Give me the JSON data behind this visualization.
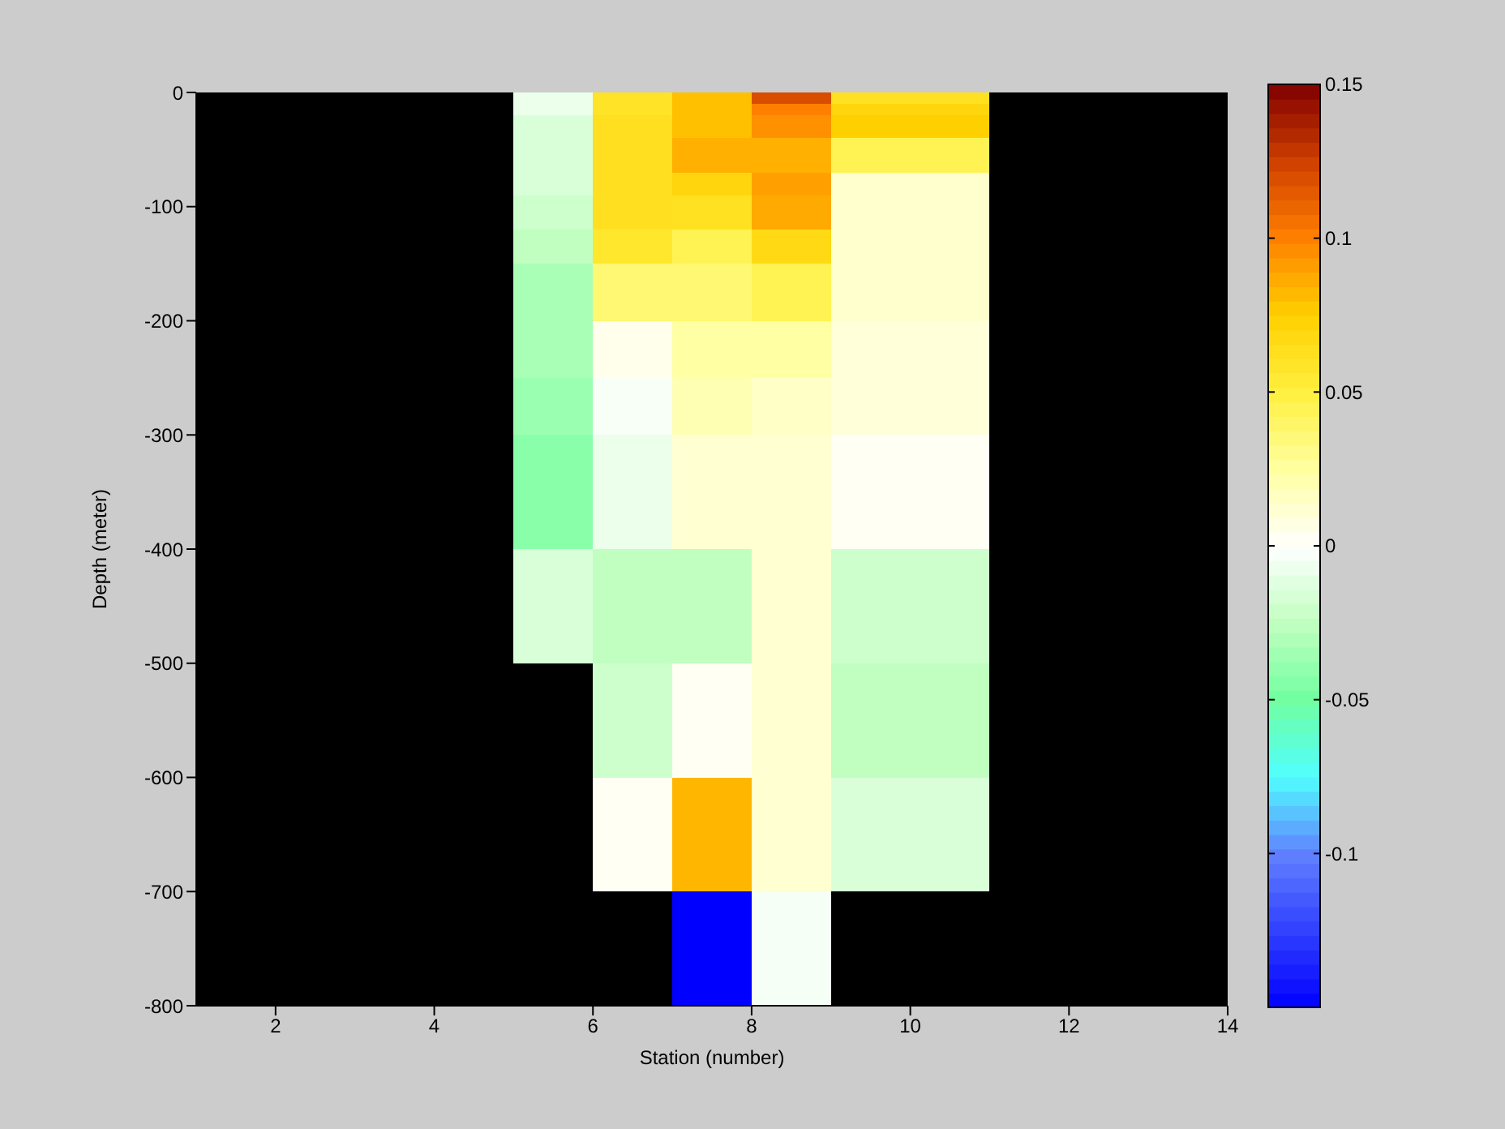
{
  "chart_data": {
    "type": "heatmap",
    "xlabel": "Station (number)",
    "ylabel": "Depth (meter)",
    "cells": [
      [
        null,
        null,
        null,
        null,
        -0.008,
        0.06,
        0.08,
        0.12,
        0.062,
        0.062,
        null,
        null,
        null
      ],
      [
        null,
        null,
        null,
        null,
        -0.008,
        0.06,
        0.08,
        0.1,
        0.07,
        0.07,
        null,
        null,
        null
      ],
      [
        null,
        null,
        null,
        null,
        -0.015,
        0.063,
        0.08,
        0.095,
        0.075,
        0.075,
        null,
        null,
        null
      ],
      [
        null,
        null,
        null,
        null,
        -0.015,
        0.063,
        0.08,
        0.095,
        0.075,
        0.075,
        null,
        null,
        null
      ],
      [
        null,
        null,
        null,
        null,
        -0.015,
        0.063,
        0.085,
        0.085,
        0.045,
        0.045,
        null,
        null,
        null
      ],
      [
        null,
        null,
        null,
        null,
        -0.015,
        0.063,
        0.085,
        0.085,
        0.045,
        0.045,
        null,
        null,
        null
      ],
      [
        null,
        null,
        null,
        null,
        -0.015,
        0.063,
        0.085,
        0.085,
        0.045,
        0.045,
        null,
        null,
        null
      ],
      [
        null,
        null,
        null,
        null,
        -0.015,
        0.063,
        0.07,
        0.09,
        0.013,
        0.013,
        null,
        null,
        null
      ],
      [
        null,
        null,
        null,
        null,
        -0.015,
        0.063,
        0.07,
        0.09,
        0.013,
        0.013,
        null,
        null,
        null
      ],
      [
        null,
        null,
        null,
        null,
        -0.02,
        0.063,
        0.062,
        0.087,
        0.013,
        0.013,
        null,
        null,
        null
      ],
      [
        null,
        null,
        null,
        null,
        -0.02,
        0.063,
        0.062,
        0.087,
        0.013,
        0.013,
        null,
        null,
        null
      ],
      [
        null,
        null,
        null,
        null,
        -0.02,
        0.063,
        0.062,
        0.087,
        0.013,
        0.013,
        null,
        null,
        null
      ],
      [
        null,
        null,
        null,
        null,
        -0.025,
        0.057,
        0.045,
        0.067,
        0.013,
        0.013,
        null,
        null,
        null
      ],
      [
        null,
        null,
        null,
        null,
        -0.025,
        0.057,
        0.045,
        0.067,
        0.013,
        0.013,
        null,
        null,
        null
      ],
      [
        null,
        null,
        null,
        null,
        -0.025,
        0.057,
        0.045,
        0.067,
        0.013,
        0.013,
        null,
        null,
        null
      ],
      [
        null,
        null,
        null,
        null,
        -0.032,
        0.037,
        0.037,
        0.045,
        0.013,
        0.013,
        null,
        null,
        null
      ],
      [
        null,
        null,
        null,
        null,
        -0.032,
        0.037,
        0.037,
        0.045,
        0.013,
        0.013,
        null,
        null,
        null
      ],
      [
        null,
        null,
        null,
        null,
        -0.032,
        0.037,
        0.037,
        0.045,
        0.013,
        0.013,
        null,
        null,
        null
      ],
      [
        null,
        null,
        null,
        null,
        -0.032,
        0.037,
        0.037,
        0.045,
        0.013,
        0.013,
        null,
        null,
        null
      ],
      [
        null,
        null,
        null,
        null,
        -0.032,
        0.037,
        0.037,
        0.045,
        0.013,
        0.013,
        null,
        null,
        null
      ],
      [
        null,
        null,
        null,
        null,
        -0.032,
        0.005,
        0.024,
        0.024,
        0.01,
        0.01,
        null,
        null,
        null
      ],
      [
        null,
        null,
        null,
        null,
        -0.032,
        0.005,
        0.024,
        0.024,
        0.01,
        0.01,
        null,
        null,
        null
      ],
      [
        null,
        null,
        null,
        null,
        -0.032,
        0.005,
        0.024,
        0.024,
        0.01,
        0.01,
        null,
        null,
        null
      ],
      [
        null,
        null,
        null,
        null,
        -0.032,
        0.005,
        0.024,
        0.024,
        0.01,
        0.01,
        null,
        null,
        null
      ],
      [
        null,
        null,
        null,
        null,
        -0.032,
        0.005,
        0.024,
        0.024,
        0.01,
        0.01,
        null,
        null,
        null
      ],
      [
        null,
        null,
        null,
        null,
        -0.037,
        -0.003,
        0.02,
        0.015,
        0.01,
        0.01,
        null,
        null,
        null
      ],
      [
        null,
        null,
        null,
        null,
        -0.037,
        -0.003,
        0.02,
        0.015,
        0.01,
        0.01,
        null,
        null,
        null
      ],
      [
        null,
        null,
        null,
        null,
        -0.037,
        -0.003,
        0.02,
        0.015,
        0.01,
        0.01,
        null,
        null,
        null
      ],
      [
        null,
        null,
        null,
        null,
        -0.037,
        -0.003,
        0.02,
        0.015,
        0.01,
        0.01,
        null,
        null,
        null
      ],
      [
        null,
        null,
        null,
        null,
        -0.037,
        -0.003,
        0.02,
        0.015,
        0.01,
        0.01,
        null,
        null,
        null
      ],
      [
        null,
        null,
        null,
        null,
        -0.042,
        -0.008,
        0.012,
        0.012,
        0.003,
        0.003,
        null,
        null,
        null
      ],
      [
        null,
        null,
        null,
        null,
        -0.042,
        -0.008,
        0.012,
        0.012,
        0.003,
        0.003,
        null,
        null,
        null
      ],
      [
        null,
        null,
        null,
        null,
        -0.042,
        -0.008,
        0.012,
        0.012,
        0.003,
        0.003,
        null,
        null,
        null
      ],
      [
        null,
        null,
        null,
        null,
        -0.042,
        -0.008,
        0.012,
        0.012,
        0.003,
        0.003,
        null,
        null,
        null
      ],
      [
        null,
        null,
        null,
        null,
        -0.042,
        -0.008,
        0.012,
        0.012,
        0.003,
        0.003,
        null,
        null,
        null
      ],
      [
        null,
        null,
        null,
        null,
        -0.042,
        -0.008,
        0.012,
        0.012,
        0.003,
        0.003,
        null,
        null,
        null
      ],
      [
        null,
        null,
        null,
        null,
        -0.042,
        -0.008,
        0.012,
        0.012,
        0.003,
        0.003,
        null,
        null,
        null
      ],
      [
        null,
        null,
        null,
        null,
        -0.042,
        -0.008,
        0.012,
        0.012,
        0.003,
        0.003,
        null,
        null,
        null
      ],
      [
        null,
        null,
        null,
        null,
        -0.042,
        -0.008,
        0.012,
        0.012,
        0.003,
        0.003,
        null,
        null,
        null
      ],
      [
        null,
        null,
        null,
        null,
        -0.042,
        -0.008,
        0.012,
        0.012,
        0.003,
        0.003,
        null,
        null,
        null
      ],
      [
        null,
        null,
        null,
        null,
        -0.015,
        -0.025,
        -0.025,
        0.012,
        -0.02,
        -0.02,
        null,
        null,
        null
      ],
      [
        null,
        null,
        null,
        null,
        -0.015,
        -0.025,
        -0.025,
        0.012,
        -0.02,
        -0.02,
        null,
        null,
        null
      ],
      [
        null,
        null,
        null,
        null,
        -0.015,
        -0.025,
        -0.025,
        0.012,
        -0.02,
        -0.02,
        null,
        null,
        null
      ],
      [
        null,
        null,
        null,
        null,
        -0.015,
        -0.025,
        -0.025,
        0.012,
        -0.02,
        -0.02,
        null,
        null,
        null
      ],
      [
        null,
        null,
        null,
        null,
        -0.015,
        -0.025,
        -0.025,
        0.012,
        -0.02,
        -0.02,
        null,
        null,
        null
      ],
      [
        null,
        null,
        null,
        null,
        -0.015,
        -0.025,
        -0.025,
        0.012,
        -0.02,
        -0.02,
        null,
        null,
        null
      ],
      [
        null,
        null,
        null,
        null,
        -0.015,
        -0.025,
        -0.025,
        0.012,
        -0.02,
        -0.02,
        null,
        null,
        null
      ],
      [
        null,
        null,
        null,
        null,
        -0.015,
        -0.025,
        -0.025,
        0.012,
        -0.02,
        -0.02,
        null,
        null,
        null
      ],
      [
        null,
        null,
        null,
        null,
        -0.015,
        -0.025,
        -0.025,
        0.012,
        -0.02,
        -0.02,
        null,
        null,
        null
      ],
      [
        null,
        null,
        null,
        null,
        -0.015,
        -0.025,
        -0.025,
        0.012,
        -0.02,
        -0.02,
        null,
        null,
        null
      ],
      [
        null,
        null,
        null,
        null,
        null,
        -0.02,
        0.003,
        0.012,
        -0.025,
        -0.025,
        null,
        null,
        null
      ],
      [
        null,
        null,
        null,
        null,
        null,
        -0.02,
        0.003,
        0.012,
        -0.025,
        -0.025,
        null,
        null,
        null
      ],
      [
        null,
        null,
        null,
        null,
        null,
        -0.02,
        0.003,
        0.012,
        -0.025,
        -0.025,
        null,
        null,
        null
      ],
      [
        null,
        null,
        null,
        null,
        null,
        -0.02,
        0.003,
        0.012,
        -0.025,
        -0.025,
        null,
        null,
        null
      ],
      [
        null,
        null,
        null,
        null,
        null,
        -0.02,
        0.003,
        0.012,
        -0.025,
        -0.025,
        null,
        null,
        null
      ],
      [
        null,
        null,
        null,
        null,
        null,
        -0.02,
        0.003,
        0.012,
        -0.025,
        -0.025,
        null,
        null,
        null
      ],
      [
        null,
        null,
        null,
        null,
        null,
        -0.02,
        0.003,
        0.012,
        -0.025,
        -0.025,
        null,
        null,
        null
      ],
      [
        null,
        null,
        null,
        null,
        null,
        -0.02,
        0.003,
        0.012,
        -0.025,
        -0.025,
        null,
        null,
        null
      ],
      [
        null,
        null,
        null,
        null,
        null,
        -0.02,
        0.003,
        0.012,
        -0.025,
        -0.025,
        null,
        null,
        null
      ],
      [
        null,
        null,
        null,
        null,
        null,
        -0.02,
        0.003,
        0.012,
        -0.025,
        -0.025,
        null,
        null,
        null
      ],
      [
        null,
        null,
        null,
        null,
        null,
        0.003,
        0.083,
        0.012,
        -0.015,
        -0.015,
        null,
        null,
        null
      ],
      [
        null,
        null,
        null,
        null,
        null,
        0.003,
        0.083,
        0.012,
        -0.015,
        -0.015,
        null,
        null,
        null
      ],
      [
        null,
        null,
        null,
        null,
        null,
        0.003,
        0.083,
        0.012,
        -0.015,
        -0.015,
        null,
        null,
        null
      ],
      [
        null,
        null,
        null,
        null,
        null,
        0.003,
        0.083,
        0.012,
        -0.015,
        -0.015,
        null,
        null,
        null
      ],
      [
        null,
        null,
        null,
        null,
        null,
        0.003,
        0.083,
        0.012,
        -0.015,
        -0.015,
        null,
        null,
        null
      ],
      [
        null,
        null,
        null,
        null,
        null,
        0.003,
        0.083,
        0.012,
        -0.015,
        -0.015,
        null,
        null,
        null
      ],
      [
        null,
        null,
        null,
        null,
        null,
        0.003,
        0.083,
        0.012,
        -0.015,
        -0.015,
        null,
        null,
        null
      ],
      [
        null,
        null,
        null,
        null,
        null,
        0.003,
        0.083,
        0.012,
        -0.015,
        -0.015,
        null,
        null,
        null
      ],
      [
        null,
        null,
        null,
        null,
        null,
        0.003,
        0.083,
        0.012,
        -0.015,
        -0.015,
        null,
        null,
        null
      ],
      [
        null,
        null,
        null,
        null,
        null,
        0.003,
        0.083,
        0.012,
        -0.015,
        -0.015,
        null,
        null,
        null
      ],
      [
        null,
        null,
        null,
        null,
        null,
        null,
        -0.15,
        -0.004,
        null,
        null,
        null,
        null,
        null
      ],
      [
        null,
        null,
        null,
        null,
        null,
        null,
        -0.15,
        -0.004,
        null,
        null,
        null,
        null,
        null
      ],
      [
        null,
        null,
        null,
        null,
        null,
        null,
        -0.15,
        -0.004,
        null,
        null,
        null,
        null,
        null
      ],
      [
        null,
        null,
        null,
        null,
        null,
        null,
        -0.15,
        -0.004,
        null,
        null,
        null,
        null,
        null
      ],
      [
        null,
        null,
        null,
        null,
        null,
        null,
        -0.15,
        -0.004,
        null,
        null,
        null,
        null,
        null
      ],
      [
        null,
        null,
        null,
        null,
        null,
        null,
        -0.15,
        -0.004,
        null,
        null,
        null,
        null,
        null
      ],
      [
        null,
        null,
        null,
        null,
        null,
        null,
        -0.15,
        -0.004,
        null,
        null,
        null,
        null,
        null
      ],
      [
        null,
        null,
        null,
        null,
        null,
        null,
        -0.15,
        -0.004,
        null,
        null,
        null,
        null,
        null
      ],
      [
        null,
        null,
        null,
        null,
        null,
        null,
        -0.15,
        -0.004,
        null,
        null,
        null,
        null,
        null
      ],
      [
        null,
        null,
        null,
        null,
        null,
        null,
        -0.15,
        -0.004,
        null,
        null,
        null,
        null,
        null
      ]
    ],
    "xlim": [
      1,
      14
    ],
    "xticks": [
      2,
      4,
      6,
      8,
      10,
      12,
      14
    ],
    "ylim": [
      -800,
      0
    ],
    "yticks": [
      -800,
      -700,
      -600,
      -500,
      -400,
      -300,
      -200,
      -100,
      0
    ],
    "clim": [
      -0.15,
      0.15
    ],
    "cticks": [
      -0.1,
      -0.05,
      0,
      0.05,
      0.1,
      0.15
    ]
  }
}
